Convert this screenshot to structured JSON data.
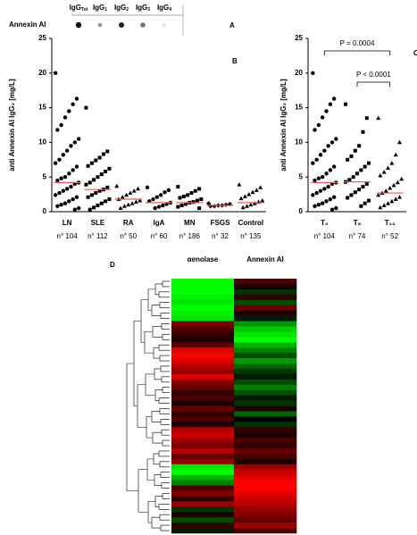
{
  "blot": {
    "label": "Annexin AI",
    "panel": "A",
    "columns": [
      {
        "base": "IgG",
        "sub": "Tot"
      },
      {
        "base": "IgG",
        "sub": "1"
      },
      {
        "base": "IgG",
        "sub": "2"
      },
      {
        "base": "IgG",
        "sub": "3"
      },
      {
        "base": "IgG",
        "sub": "4"
      }
    ]
  },
  "chart_data": [
    {
      "type": "strip",
      "panel": "B",
      "y_label": "anti Annexin AI IgG₂ [mg/L]",
      "ylim": [
        0,
        25
      ],
      "yticks": [
        0,
        5,
        10,
        15,
        20,
        25
      ],
      "median_color": "#e06060",
      "series": [
        {
          "name": "LN",
          "n_label": "n° 104",
          "marker": "circle",
          "median": 4.2,
          "values": [
            20,
            16.3,
            15.5,
            14.5,
            13.6,
            12.5,
            11.8,
            10.5,
            10,
            9.5,
            8.8,
            8.2,
            7.5,
            7,
            6.5,
            6,
            5.5,
            5,
            4.8,
            4.5,
            4.2,
            4,
            3.6,
            3.3,
            3,
            2.7,
            2.4,
            2.1,
            1.8,
            1.5,
            1.2,
            1,
            0.8,
            0.5,
            0.3
          ]
        },
        {
          "name": "SLE",
          "n_label": "n° 112",
          "marker": "square",
          "median": 3.2,
          "values": [
            15,
            8.7,
            8.3,
            7.8,
            7.4,
            7,
            6.6,
            6.2,
            5.8,
            5.4,
            5,
            4.6,
            4.2,
            3.9,
            3.5,
            3.2,
            3,
            2.7,
            2.4,
            2.1,
            1.8,
            1.5,
            1.2,
            0.9,
            0.6,
            0.3
          ]
        },
        {
          "name": "RA",
          "n_label": "n° 50",
          "marker": "triangle",
          "median": 1.8,
          "values": [
            3.7,
            3.3,
            3,
            2.7,
            2.4,
            2.1,
            1.8,
            1.6,
            1.4,
            1.2,
            1,
            0.8,
            0.5
          ]
        },
        {
          "name": "IgA",
          "n_label": "n° 60",
          "marker": "circle",
          "median": 1.3,
          "values": [
            3.5,
            3.1,
            2.8,
            2.4,
            2.1,
            1.8,
            1.5,
            1.3,
            1.1,
            0.9,
            0.7,
            0.5
          ]
        },
        {
          "name": "MN",
          "n_label": "n° 186",
          "marker": "square",
          "median": 1.3,
          "values": [
            3.6,
            3.3,
            3,
            2.7,
            2.4,
            2.2,
            2,
            1.8,
            1.6,
            1.4,
            1.3,
            1.1,
            0.9,
            0.7,
            0.5
          ]
        },
        {
          "name": "FSGS",
          "n_label": "n° 32",
          "marker": "diamond",
          "median": 0.9,
          "values": [
            1.2,
            1.1,
            1,
            0.9,
            0.9,
            0.8,
            0.8
          ]
        },
        {
          "name": "Control",
          "n_label": "n° 135",
          "marker": "triangle",
          "median": 1.3,
          "values": [
            3.9,
            3.5,
            3.1,
            2.8,
            2.5,
            2.2,
            1.9,
            1.6,
            1.4,
            1.2,
            1,
            0.8,
            0.6
          ]
        }
      ]
    },
    {
      "type": "strip",
      "panel": "C",
      "y_label": "anti Annexin AI IgG₂ [mg/L]",
      "ylim": [
        0,
        25
      ],
      "yticks": [
        0,
        5,
        10,
        15,
        20,
        25
      ],
      "median_color": "#e06060",
      "annotations": [
        {
          "text": "P = 0.0004",
          "from": 0,
          "to": 2
        },
        {
          "text": "P < 0.0001",
          "from": 1,
          "to": 2
        }
      ],
      "series": [
        {
          "name": "T₀",
          "n_label": "n° 104",
          "marker": "circle",
          "median": 4.2,
          "values": [
            20,
            16.3,
            15.5,
            14.5,
            13.6,
            12.5,
            11.8,
            10.5,
            10,
            9.5,
            8.8,
            8.2,
            7.5,
            7,
            6.5,
            6,
            5.5,
            5,
            4.8,
            4.5,
            4.2,
            4,
            3.6,
            3.3,
            3,
            2.7,
            2.4,
            2.1,
            1.8,
            1.5,
            1.2,
            1,
            0.8,
            0.5,
            0.3
          ]
        },
        {
          "name": "T₆",
          "n_label": "n° 74",
          "marker": "square",
          "median": 4.3,
          "values": [
            15.5,
            13.5,
            11.5,
            9.5,
            8.8,
            8,
            7.5,
            7,
            6.5,
            6,
            5.5,
            5,
            4.6,
            4.3,
            4,
            3.6,
            3.2,
            2.8,
            2.4,
            2,
            1.6,
            1.2,
            0.8
          ]
        },
        {
          "name": "T₁₂",
          "n_label": "n° 52",
          "marker": "triangle",
          "median": 2.7,
          "values": [
            13.5,
            10,
            8.2,
            7,
            6.3,
            5.7,
            5.2,
            4.7,
            4.2,
            3.8,
            3.4,
            3,
            2.7,
            2.4,
            2.1,
            1.8,
            1.5,
            1.2,
            0.9,
            0.6
          ]
        }
      ]
    },
    {
      "type": "heatmap",
      "panel": "D",
      "columns": [
        "αenolase",
        "Annexin AI"
      ],
      "zlim": [
        -1,
        1
      ],
      "colors": [
        "#00ff00",
        "#000000",
        "#ff0000"
      ],
      "values": [
        [
          -1,
          0.3
        ],
        [
          -1,
          0.1
        ],
        [
          -1,
          -0.2
        ],
        [
          -0.95,
          0.2
        ],
        [
          -0.9,
          -0.3
        ],
        [
          -1,
          0.4
        ],
        [
          -0.95,
          0.1
        ],
        [
          -0.9,
          -0.1
        ],
        [
          0.5,
          -0.6
        ],
        [
          0.3,
          -0.8
        ],
        [
          0.2,
          -0.9
        ],
        [
          0.1,
          -1
        ],
        [
          0.4,
          -0.7
        ],
        [
          0.9,
          -0.5
        ],
        [
          1,
          -0.3
        ],
        [
          0.85,
          -0.6
        ],
        [
          0.7,
          -0.4
        ],
        [
          0.6,
          -0.2
        ],
        [
          0.9,
          -0.1
        ],
        [
          0.5,
          -0.3
        ],
        [
          0.4,
          -0.5
        ],
        [
          0.2,
          -0.3
        ],
        [
          0.3,
          -0.1
        ],
        [
          0.1,
          -0.2
        ],
        [
          0.4,
          0.1
        ],
        [
          0.2,
          -0.4
        ],
        [
          0.3,
          0
        ],
        [
          0.1,
          -0.2
        ],
        [
          0.7,
          0.2
        ],
        [
          0.8,
          0.1
        ],
        [
          0.6,
          0.3
        ],
        [
          0.5,
          0.2
        ],
        [
          0.7,
          0.4
        ],
        [
          0.4,
          0.3
        ],
        [
          0.6,
          0.1
        ],
        [
          -0.9,
          0.6
        ],
        [
          -1,
          0.8
        ],
        [
          -0.7,
          0.9
        ],
        [
          -0.5,
          1
        ],
        [
          0.3,
          1
        ],
        [
          0.5,
          0.9
        ],
        [
          0.2,
          0.8
        ],
        [
          0.6,
          0.7
        ],
        [
          -0.2,
          0.6
        ],
        [
          0.1,
          0.5
        ],
        [
          -0.3,
          0.4
        ],
        [
          0.2,
          0.6
        ],
        [
          -0.1,
          0.3
        ]
      ]
    }
  ]
}
